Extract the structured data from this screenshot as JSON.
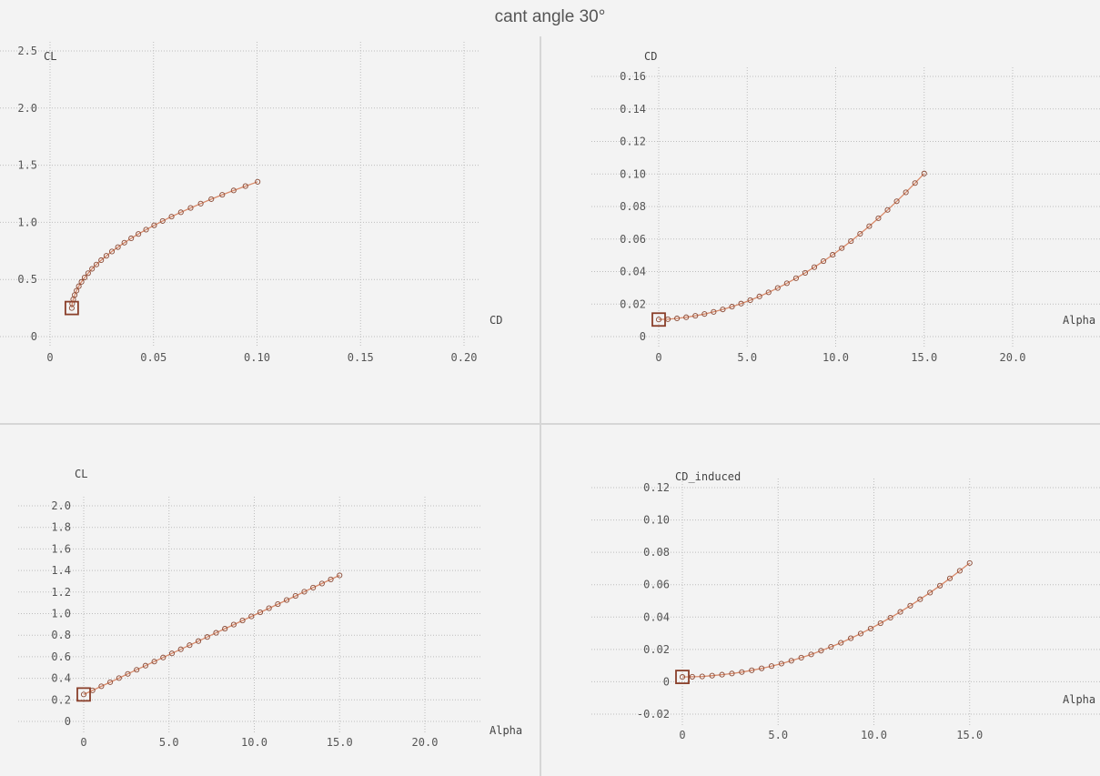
{
  "title": "cant angle 30°",
  "colors": {
    "curve": "#d98a6a",
    "marker": "#8a4a35",
    "selection": "#8a3f2a",
    "background": "#f3f3f3"
  },
  "chart_data": [
    {
      "type": "scatter",
      "id": "cl-cd",
      "xlabel": "CD",
      "ylabel": "CL",
      "xlim": [
        0,
        0.2
      ],
      "ylim": [
        0,
        2.5
      ],
      "xticks": [
        0,
        0.05,
        0.1,
        0.15,
        0.2
      ],
      "xtick_labels": [
        "0",
        "0.05",
        "0.10",
        "0.15",
        "0.20"
      ],
      "yticks": [
        0,
        0.5,
        1.0,
        1.5,
        2.0,
        2.5
      ],
      "ytick_labels": [
        "0",
        "0.5",
        "1.0",
        "1.5",
        "2.0",
        "2.5"
      ],
      "grid": true,
      "series": [
        {
          "x": [
            0.0105,
            0.0107,
            0.0112,
            0.0119,
            0.0128,
            0.0139,
            0.0152,
            0.0167,
            0.0184,
            0.0203,
            0.0224,
            0.0247,
            0.0272,
            0.0299,
            0.0328,
            0.0359,
            0.0392,
            0.0427,
            0.0464,
            0.0503,
            0.0544,
            0.0587,
            0.0632,
            0.0679,
            0.0728,
            0.0779,
            0.0832,
            0.0887,
            0.0944,
            0.1003
          ],
          "y": [
            0.25,
            0.288,
            0.326,
            0.364,
            0.402,
            0.441,
            0.479,
            0.517,
            0.555,
            0.593,
            0.631,
            0.669,
            0.707,
            0.745,
            0.783,
            0.822,
            0.86,
            0.898,
            0.936,
            0.974,
            1.012,
            1.05,
            1.088,
            1.126,
            1.164,
            1.203,
            1.241,
            1.279,
            1.317,
            1.355
          ]
        }
      ],
      "selected_point": {
        "x": 0.0105,
        "y": 0.25
      }
    },
    {
      "type": "scatter",
      "id": "cd-alpha",
      "xlabel": "Alpha",
      "ylabel": "CD",
      "xlim": [
        0,
        20
      ],
      "ylim": [
        0,
        0.16
      ],
      "xticks": [
        0,
        5,
        10,
        15,
        20
      ],
      "xtick_labels": [
        "0",
        "5.0",
        "10.0",
        "15.0",
        "20.0"
      ],
      "yticks": [
        0,
        0.02,
        0.04,
        0.06,
        0.08,
        0.1,
        0.12,
        0.14,
        0.16
      ],
      "ytick_labels": [
        "0",
        "0.02",
        "0.04",
        "0.06",
        "0.08",
        "0.10",
        "0.12",
        "0.14",
        "0.16"
      ],
      "grid": true,
      "series": [
        {
          "x": [
            0,
            0.517,
            1.034,
            1.552,
            2.069,
            2.586,
            3.103,
            3.621,
            4.138,
            4.655,
            5.172,
            5.69,
            6.207,
            6.724,
            7.241,
            7.759,
            8.276,
            8.793,
            9.31,
            9.828,
            10.345,
            10.862,
            11.379,
            11.897,
            12.414,
            12.931,
            13.448,
            13.966,
            14.483,
            15.0
          ],
          "y": [
            0.0105,
            0.0107,
            0.0112,
            0.0119,
            0.0128,
            0.0139,
            0.0152,
            0.0167,
            0.0184,
            0.0203,
            0.0224,
            0.0247,
            0.0272,
            0.0299,
            0.0328,
            0.0359,
            0.0392,
            0.0427,
            0.0464,
            0.0503,
            0.0544,
            0.0587,
            0.0632,
            0.0679,
            0.0728,
            0.0779,
            0.0832,
            0.0887,
            0.0944,
            0.1003
          ]
        }
      ],
      "selected_point": {
        "x": 0,
        "y": 0.0105
      }
    },
    {
      "type": "scatter",
      "id": "cl-alpha",
      "xlabel": "Alpha",
      "ylabel": "CL",
      "xlim": [
        0,
        20
      ],
      "ylim": [
        0,
        2.0
      ],
      "xticks": [
        0,
        5,
        10,
        15,
        20
      ],
      "xtick_labels": [
        "0",
        "5.0",
        "10.0",
        "15.0",
        "20.0"
      ],
      "yticks": [
        0,
        0.2,
        0.4,
        0.6,
        0.8,
        1.0,
        1.2,
        1.4,
        1.6,
        1.8,
        2.0
      ],
      "ytick_labels": [
        "0",
        "0.2",
        "0.4",
        "0.6",
        "0.8",
        "1.0",
        "1.2",
        "1.4",
        "1.6",
        "1.8",
        "2.0"
      ],
      "grid": true,
      "series": [
        {
          "x": [
            0,
            0.517,
            1.034,
            1.552,
            2.069,
            2.586,
            3.103,
            3.621,
            4.138,
            4.655,
            5.172,
            5.69,
            6.207,
            6.724,
            7.241,
            7.759,
            8.276,
            8.793,
            9.31,
            9.828,
            10.345,
            10.862,
            11.379,
            11.897,
            12.414,
            12.931,
            13.448,
            13.966,
            14.483,
            15.0
          ],
          "y": [
            0.25,
            0.288,
            0.326,
            0.364,
            0.402,
            0.441,
            0.479,
            0.517,
            0.555,
            0.593,
            0.631,
            0.669,
            0.707,
            0.745,
            0.783,
            0.822,
            0.86,
            0.898,
            0.936,
            0.974,
            1.012,
            1.05,
            1.088,
            1.126,
            1.164,
            1.203,
            1.241,
            1.279,
            1.317,
            1.355
          ]
        }
      ],
      "selected_point": {
        "x": 0,
        "y": 0.25
      }
    },
    {
      "type": "scatter",
      "id": "cdi-alpha",
      "xlabel": "Alpha",
      "ylabel": "CD_induced",
      "xlim": [
        0,
        20
      ],
      "ylim": [
        -0.02,
        0.12
      ],
      "xticks": [
        0,
        5,
        10,
        15
      ],
      "xtick_labels": [
        "0",
        "5.0",
        "10.0",
        "15.0"
      ],
      "yticks": [
        -0.02,
        0,
        0.02,
        0.04,
        0.06,
        0.08,
        0.1,
        0.12
      ],
      "ytick_labels": [
        "-0.02",
        "0",
        "0.02",
        "0.04",
        "0.06",
        "0.08",
        "0.10",
        "0.12"
      ],
      "grid": true,
      "series": [
        {
          "x": [
            0,
            0.517,
            1.034,
            1.552,
            2.069,
            2.586,
            3.103,
            3.621,
            4.138,
            4.655,
            5.172,
            5.69,
            6.207,
            6.724,
            7.241,
            7.759,
            8.276,
            8.793,
            9.31,
            9.828,
            10.345,
            10.862,
            11.379,
            11.897,
            12.414,
            12.931,
            13.448,
            13.966,
            14.483,
            15.0
          ],
          "y": [
            0.003,
            0.0031,
            0.0033,
            0.0038,
            0.0044,
            0.0051,
            0.006,
            0.0071,
            0.0083,
            0.0097,
            0.0112,
            0.013,
            0.0149,
            0.0169,
            0.0192,
            0.0216,
            0.0241,
            0.0269,
            0.0298,
            0.0329,
            0.0362,
            0.0396,
            0.0432,
            0.047,
            0.051,
            0.0551,
            0.0594,
            0.0639,
            0.0686,
            0.0734
          ]
        }
      ],
      "selected_point": {
        "x": 0,
        "y": 0.003
      }
    }
  ]
}
